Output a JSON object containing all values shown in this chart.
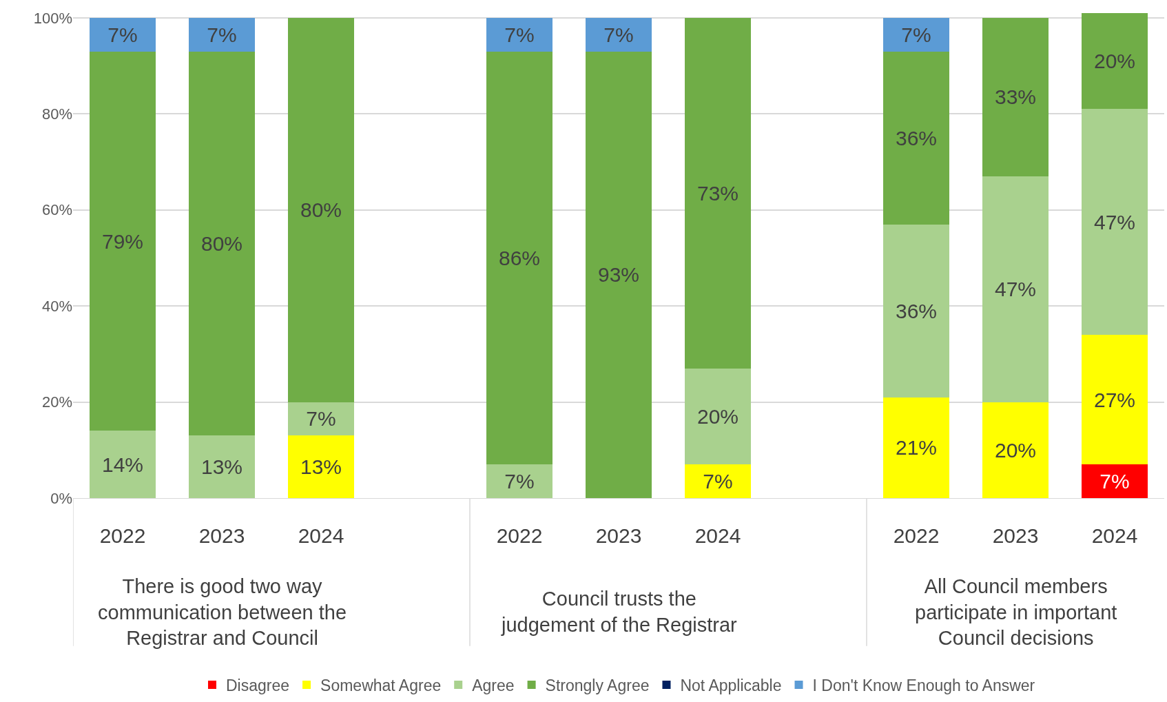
{
  "chart_data": {
    "type": "bar",
    "stacked": true,
    "categories": [
      "2022",
      "2023",
      "2024",
      null,
      "2022",
      "2023",
      "2024",
      null,
      "2022",
      "2023",
      "2024"
    ],
    "series": [
      {
        "name": "Disagree",
        "color": "#ff0000",
        "values": [
          null,
          null,
          null,
          null,
          null,
          null,
          null,
          null,
          null,
          null,
          7
        ],
        "value_labels": [
          null,
          null,
          null,
          null,
          null,
          null,
          null,
          null,
          null,
          null,
          "7%"
        ]
      },
      {
        "name": "Somewhat Agree",
        "color": "#ffff00",
        "values": [
          null,
          null,
          13,
          null,
          null,
          null,
          7,
          null,
          21,
          20,
          27
        ],
        "value_labels": [
          null,
          null,
          "13%",
          null,
          null,
          null,
          "7%",
          null,
          "21%",
          "20%",
          "27%"
        ]
      },
      {
        "name": "Agree",
        "color": "#a9d18e",
        "values": [
          14,
          13,
          7,
          null,
          7,
          null,
          20,
          null,
          36,
          47,
          47
        ],
        "value_labels": [
          "14%",
          "13%",
          "7%",
          null,
          "7%",
          null,
          "20%",
          null,
          "36%",
          "47%",
          "47%"
        ]
      },
      {
        "name": "Strongly Agree",
        "color": "#70ad47",
        "values": [
          79,
          80,
          80,
          null,
          86,
          93,
          73,
          null,
          36,
          33,
          20
        ],
        "value_labels": [
          "79%",
          "80%",
          "80%",
          null,
          "86%",
          "93%",
          "73%",
          null,
          "36%",
          "33%",
          "20%"
        ]
      },
      {
        "name": "Not Applicable",
        "color": "#002060",
        "values": [
          null,
          null,
          null,
          null,
          null,
          null,
          null,
          null,
          null,
          null,
          null
        ]
      },
      {
        "name": "I Don't Know Enough to Answer",
        "color": "#5b9bd5",
        "values": [
          7,
          7,
          null,
          null,
          7,
          7,
          null,
          null,
          7,
          null,
          null
        ],
        "value_labels": [
          "7%",
          "7%",
          null,
          null,
          "7%",
          "7%",
          null,
          null,
          "7%",
          null,
          null
        ]
      }
    ],
    "ylim": [
      0,
      101
    ],
    "yticks": [
      {
        "value": 0,
        "label": "0%"
      },
      {
        "value": 20,
        "label": "20%"
      },
      {
        "value": 40,
        "label": "40%"
      },
      {
        "value": 60,
        "label": "60%"
      },
      {
        "value": 80,
        "label": "80%"
      },
      {
        "value": 100,
        "label": "100%"
      }
    ],
    "grid": "y",
    "legend": "bottom",
    "annotations": [
      "There is good two way communication between the Registrar and Council",
      "Council trusts the judgement of the Registrar",
      "All Council members participate in important Council decisions"
    ]
  }
}
